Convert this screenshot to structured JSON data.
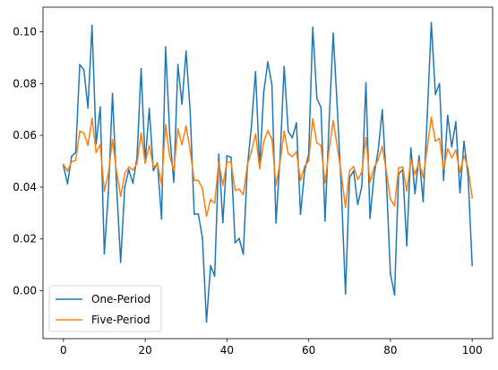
{
  "chart_data": {
    "type": "line",
    "title": "",
    "xlabel": "",
    "ylabel": "",
    "xlim": [
      -5,
      105
    ],
    "ylim": [
      -0.0185,
      0.1095
    ],
    "x_ticks": [
      0,
      20,
      40,
      60,
      80,
      100
    ],
    "y_ticks": [
      0.0,
      0.02,
      0.04,
      0.06,
      0.08,
      0.1
    ],
    "grid": false,
    "legend_position": "lower-left",
    "series": [
      {
        "name": "One-Period",
        "color": "#1f77b4",
        "x": [
          0,
          1,
          2,
          3,
          4,
          5,
          6,
          7,
          8,
          9,
          10,
          11,
          12,
          13,
          14,
          15,
          16,
          17,
          18,
          19,
          20,
          21,
          22,
          23,
          24,
          25,
          26,
          27,
          28,
          29,
          30,
          31,
          32,
          33,
          34,
          35,
          36,
          37,
          38,
          39,
          40,
          41,
          42,
          43,
          44,
          45,
          46,
          47,
          48,
          49,
          50,
          51,
          52,
          53,
          54,
          55,
          56,
          57,
          58,
          59,
          60,
          61,
          62,
          63,
          64,
          65,
          66,
          67,
          68,
          69,
          70,
          71,
          72,
          73,
          74,
          75,
          76,
          77,
          78,
          79,
          80,
          81,
          82,
          83,
          84,
          85,
          86,
          87,
          88,
          89,
          90,
          91,
          92,
          93,
          94,
          95,
          96,
          97,
          98,
          99,
          100
        ],
        "values": [
          0.0483,
          0.0413,
          0.0519,
          0.0534,
          0.0873,
          0.0853,
          0.0706,
          0.1024,
          0.0567,
          0.0709,
          0.0143,
          0.0378,
          0.0762,
          0.0405,
          0.011,
          0.0401,
          0.0467,
          0.0415,
          0.0515,
          0.0857,
          0.0497,
          0.0704,
          0.0464,
          0.0493,
          0.0277,
          0.0941,
          0.0606,
          0.0419,
          0.0873,
          0.0721,
          0.0925,
          0.0694,
          0.0296,
          0.0296,
          0.0205,
          -0.0121,
          0.0097,
          0.0056,
          0.0527,
          0.0263,
          0.0521,
          0.0516,
          0.0185,
          0.0202,
          0.0141,
          0.0479,
          0.0637,
          0.0846,
          0.0474,
          0.0766,
          0.0883,
          0.0796,
          0.0262,
          0.0514,
          0.0866,
          0.0614,
          0.0591,
          0.0648,
          0.0295,
          0.0462,
          0.0528,
          0.1017,
          0.0743,
          0.0708,
          0.027,
          0.0654,
          0.0994,
          0.0707,
          0.0388,
          -0.0012,
          0.0437,
          0.0463,
          0.0333,
          0.0403,
          0.0803,
          0.028,
          0.0448,
          0.0541,
          0.0699,
          0.0428,
          0.0065,
          -0.0016,
          0.0451,
          0.0468,
          0.0174,
          0.0551,
          0.0375,
          0.052,
          0.0344,
          0.0672,
          0.1035,
          0.0758,
          0.08,
          0.0426,
          0.0677,
          0.0556,
          0.0652,
          0.0379,
          0.0577,
          0.0441,
          0.0098
        ]
      },
      {
        "name": "Five-Period",
        "color": "#ff7f0e",
        "x": [
          0,
          1,
          2,
          3,
          4,
          5,
          6,
          7,
          8,
          9,
          10,
          11,
          12,
          13,
          14,
          15,
          16,
          17,
          18,
          19,
          20,
          21,
          22,
          23,
          24,
          25,
          26,
          27,
          28,
          29,
          30,
          31,
          32,
          33,
          34,
          35,
          36,
          37,
          38,
          39,
          40,
          41,
          42,
          43,
          44,
          45,
          46,
          47,
          48,
          49,
          50,
          51,
          52,
          53,
          54,
          55,
          56,
          57,
          58,
          59,
          60,
          61,
          62,
          63,
          64,
          65,
          66,
          67,
          68,
          69,
          70,
          71,
          72,
          73,
          74,
          75,
          76,
          77,
          78,
          79,
          80,
          81,
          82,
          83,
          84,
          85,
          86,
          87,
          88,
          89,
          90,
          91,
          92,
          93,
          94,
          95,
          96,
          97,
          98,
          99,
          100
        ],
        "values": [
          0.0488,
          0.0462,
          0.0499,
          0.0503,
          0.0616,
          0.0609,
          0.0562,
          0.0666,
          0.0534,
          0.0564,
          0.0384,
          0.0454,
          0.0584,
          0.046,
          0.0364,
          0.0452,
          0.0478,
          0.0466,
          0.0491,
          0.0609,
          0.0493,
          0.0561,
          0.0478,
          0.0489,
          0.0412,
          0.0641,
          0.0519,
          0.0464,
          0.0625,
          0.0564,
          0.0636,
          0.0542,
          0.0426,
          0.0426,
          0.0395,
          0.0288,
          0.0352,
          0.0339,
          0.0497,
          0.0407,
          0.0497,
          0.0496,
          0.0388,
          0.0392,
          0.0371,
          0.0485,
          0.0538,
          0.0605,
          0.0472,
          0.0575,
          0.0618,
          0.0586,
          0.0408,
          0.0495,
          0.0616,
          0.0529,
          0.0518,
          0.0537,
          0.0426,
          0.048,
          0.0502,
          0.0664,
          0.0571,
          0.0561,
          0.0416,
          0.0545,
          0.0656,
          0.0557,
          0.0448,
          0.0322,
          0.0464,
          0.0479,
          0.043,
          0.0458,
          0.0591,
          0.0418,
          0.0476,
          0.0506,
          0.0558,
          0.0462,
          0.0353,
          0.0328,
          0.0474,
          0.0478,
          0.0384,
          0.0507,
          0.0449,
          0.0498,
          0.0437,
          0.0551,
          0.067,
          0.0577,
          0.0588,
          0.0468,
          0.0548,
          0.0514,
          0.0543,
          0.0457,
          0.0521,
          0.0474,
          0.0359
        ]
      }
    ]
  }
}
